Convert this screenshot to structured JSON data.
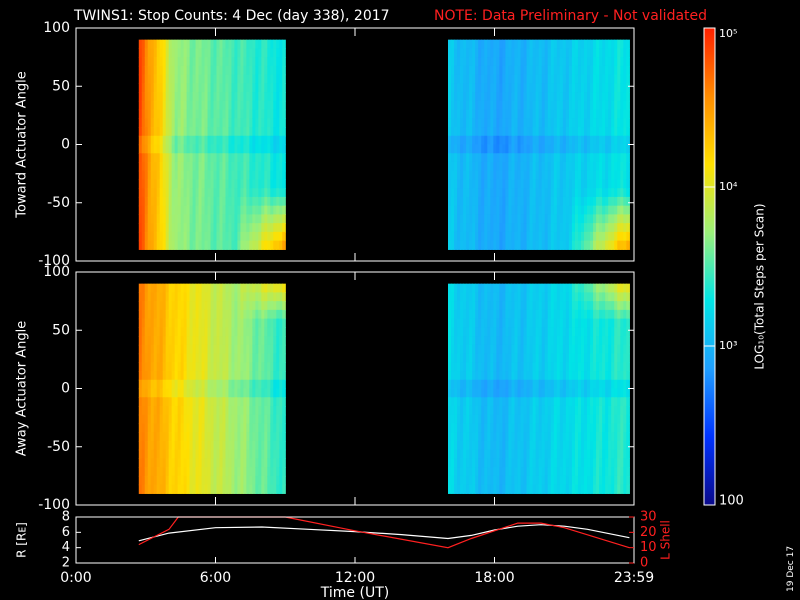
{
  "header": {
    "title": "TWINS1: Stop Counts:  4 Dec (day 338), 2017",
    "note": "NOTE: Data Preliminary - Not validated"
  },
  "side_date": "19 Dec 17",
  "colorbar": {
    "label": "LOG10(Total Steps per Scan)",
    "label_display": "LOG₁₀(Total Steps per Scan)",
    "range": [
      100,
      100000
    ],
    "tick_labels": [
      "100",
      "10³",
      "10⁴",
      "10⁵"
    ],
    "colors": [
      "#0a0a8a",
      "#0033ff",
      "#1f9fff",
      "#00e5e5",
      "#9bf07a",
      "#ffe000",
      "#ff8c00",
      "#ff2000"
    ]
  },
  "colors": {
    "lshell": "#ff2020",
    "rline": "#ffffff",
    "axis": "#ffffff",
    "background": "#000000"
  },
  "chart_data": [
    {
      "type": "heatmap",
      "ylabel": "Toward Actuator Angle",
      "ylim": [
        -100,
        100
      ],
      "yticks": [
        -100,
        -50,
        0,
        50,
        100
      ],
      "xlim": [
        0,
        24
      ],
      "x_tick_labels": [
        "0:00",
        "6:00",
        "12:00",
        "18:00",
        "23:59"
      ],
      "segments": [
        {
          "time_range": [
            2.7,
            9.0
          ],
          "angle_range": [
            -90,
            90
          ],
          "log_counts_early": 4.8,
          "log_counts_mid": 3.7,
          "log_counts_late": 3.3
        },
        {
          "time_range": [
            16.0,
            23.8
          ],
          "angle_range": [
            -90,
            90
          ],
          "log_counts_early": 3.1,
          "log_counts_mid": 2.9,
          "log_counts_late": 3.3
        }
      ]
    },
    {
      "type": "heatmap",
      "ylabel": "Away Actuator Angle",
      "ylim": [
        -100,
        100
      ],
      "yticks": [
        -100,
        -50,
        0,
        50,
        100
      ],
      "xlim": [
        0,
        24
      ],
      "x_tick_labels": [
        "0:00",
        "6:00",
        "12:00",
        "18:00",
        "23:59"
      ],
      "segments": [
        {
          "time_range": [
            2.7,
            9.0
          ],
          "angle_range": [
            -90,
            90
          ],
          "log_counts_early": 4.6,
          "log_counts_mid": 4.2,
          "log_counts_late": 3.4
        },
        {
          "time_range": [
            16.0,
            23.8
          ],
          "angle_range": [
            -90,
            90
          ],
          "log_counts_early": 3.2,
          "log_counts_mid": 3.0,
          "log_counts_late": 3.4
        }
      ]
    },
    {
      "type": "line",
      "xlabel": "Time (UT)",
      "x_tick_labels": [
        "0:00",
        "6:00",
        "12:00",
        "18:00",
        "23:59"
      ],
      "xlim": [
        0,
        24
      ],
      "left_axis": {
        "label": "R [RE]",
        "label_display": "R [Rᴇ]",
        "ylim": [
          2,
          8
        ],
        "ticks": [
          2,
          4,
          6,
          8
        ]
      },
      "right_axis": {
        "label": "L Shell",
        "ylim": [
          0,
          30
        ],
        "ticks": [
          0,
          10,
          20,
          30
        ]
      },
      "series": [
        {
          "name": "R [RE]",
          "axis": "left",
          "x": [
            2.7,
            4,
            6,
            8,
            10,
            12,
            14,
            16.0,
            17,
            18,
            19,
            20,
            21,
            22,
            23.8
          ],
          "y": [
            4.9,
            5.9,
            6.6,
            6.7,
            6.4,
            6.1,
            5.7,
            5.2,
            5.6,
            6.3,
            6.8,
            7.0,
            6.8,
            6.4,
            5.3
          ]
        },
        {
          "name": "L Shell",
          "axis": "right",
          "x": [
            2.7,
            4.0,
            4.4,
            8.7,
            9.0,
            12,
            16.0,
            17,
            19,
            20,
            21,
            23.8
          ],
          "y": [
            12,
            22,
            30,
            30,
            30,
            21,
            10,
            16,
            26,
            26,
            23,
            10
          ]
        }
      ]
    }
  ]
}
